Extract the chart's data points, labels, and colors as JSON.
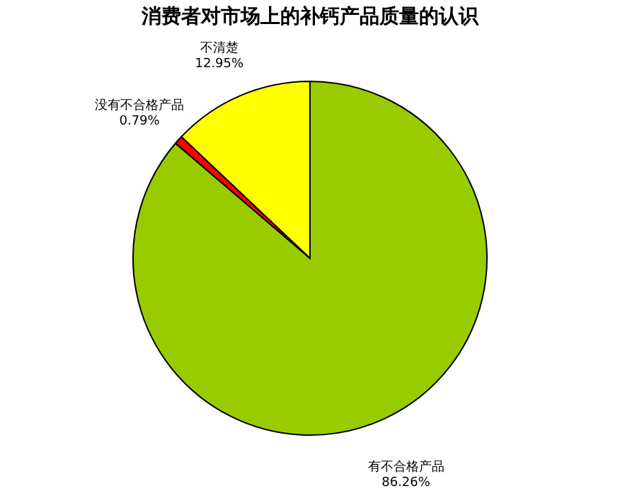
{
  "chart_data": {
    "type": "pie",
    "title": "消费者对市场上的补钙产品质量的认识",
    "categories": [
      "有不合格产品",
      "没有不合格产品",
      "不清楚"
    ],
    "values": [
      86.26,
      0.79,
      12.95
    ],
    "colors": [
      "#99cc00",
      "#ff0000",
      "#ffff00"
    ],
    "value_labels": [
      "86.26%",
      "0.79%",
      "12.95%"
    ],
    "legend": false
  }
}
